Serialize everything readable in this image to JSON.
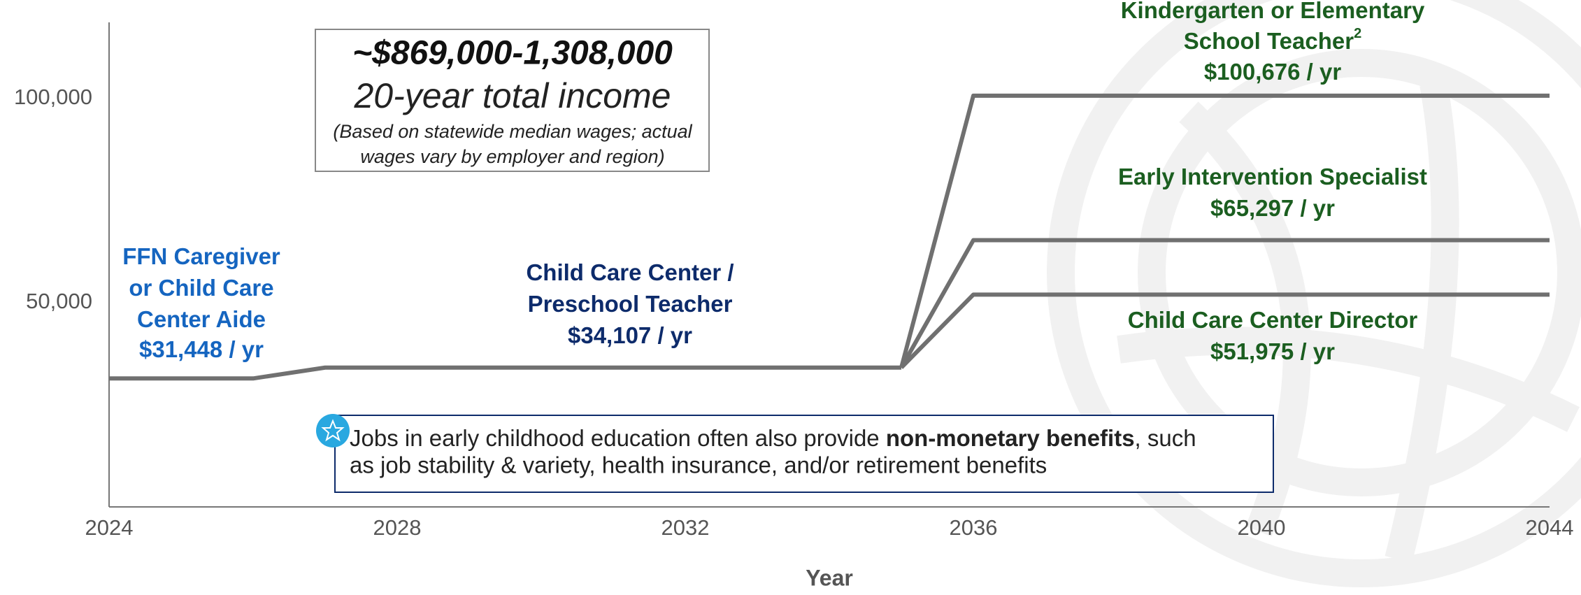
{
  "chart_data": {
    "type": "line",
    "x_label": "Year",
    "xlim": [
      2024,
      2044
    ],
    "xticks": [
      2024,
      2028,
      2032,
      2036,
      2040,
      2044
    ],
    "ylim": [
      0,
      120000
    ],
    "yticks": [
      {
        "value": 50000,
        "label": "50,000"
      },
      {
        "value": 100000,
        "label": "100,000"
      }
    ],
    "grid": false,
    "line_color": "#707070",
    "series": [
      {
        "x": [
          2024,
          2026,
          2027,
          2035
        ],
        "values": [
          31448,
          31448,
          34107,
          34107
        ]
      },
      {
        "x": [
          2035,
          2036,
          2044
        ],
        "values": [
          34107,
          100676,
          100676
        ]
      },
      {
        "x": [
          2035,
          2036,
          2044
        ],
        "values": [
          34107,
          65297,
          65297
        ]
      },
      {
        "x": [
          2035,
          2036,
          2044
        ],
        "values": [
          34107,
          51975,
          51975
        ]
      }
    ],
    "annotations": [
      {
        "lines": [
          "FFN Caregiver",
          "or Child Care",
          "Center Aide",
          "$31,448 / yr"
        ],
        "color": "#1565c0"
      },
      {
        "lines": [
          "Child Care Center /",
          "Preschool Teacher",
          "$34,107 / yr"
        ],
        "color": "#0d2b6b"
      },
      {
        "lines": [
          "Kindergarten or Elementary",
          "School Teacher",
          "$100,676 / yr"
        ],
        "footnote_mark": "2",
        "color": "#1b5e20"
      },
      {
        "lines": [
          "Early Intervention Specialist",
          "$65,297 / yr"
        ],
        "color": "#1b5e20"
      },
      {
        "lines": [
          "Child Care Center Director",
          "$51,975 / yr"
        ],
        "color": "#1b5e20"
      }
    ],
    "total_box": {
      "amount": "~$869,000-1,308,000",
      "caption": "20-year total income",
      "note": [
        "(Based on statewide median wages; actual",
        "wages vary by employer and region)"
      ]
    },
    "benefits_box": {
      "before": "Jobs in early childhood education often also provide ",
      "bold": "non-monetary benefits",
      "after": ", such",
      "line2": "as job stability & variety, health insurance, and/or retirement benefits"
    }
  }
}
